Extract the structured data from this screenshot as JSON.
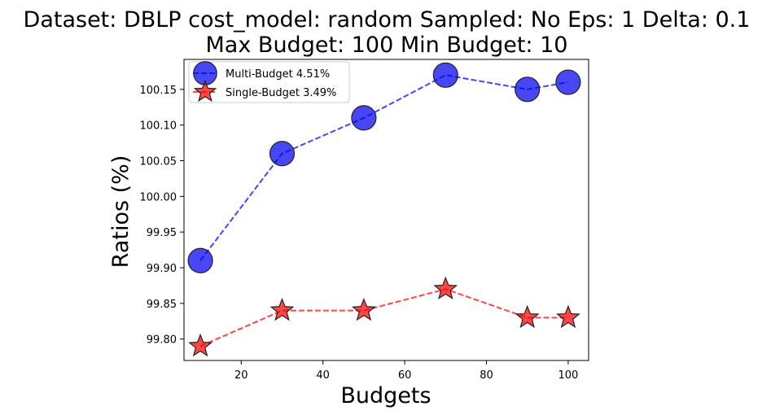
{
  "chart_data": {
    "type": "line",
    "title_line1": "Dataset: DBLP cost_model: random Sampled: No Eps: 1 Delta: 0.1",
    "title_line2": "Max Budget: 100 Min Budget: 10",
    "xlabel": "Budgets",
    "ylabel": "Ratios (%)",
    "x": [
      10,
      30,
      50,
      70,
      90,
      100
    ],
    "xlim": [
      6,
      105
    ],
    "ylim": [
      99.77,
      100.192
    ],
    "xticks": [
      20,
      40,
      60,
      80,
      100
    ],
    "yticks": [
      99.8,
      99.85,
      99.9,
      99.95,
      100.0,
      100.05,
      100.1,
      100.15
    ],
    "ytick_labels": [
      "99.80",
      "99.85",
      "99.90",
      "99.95",
      "100.00",
      "100.05",
      "100.10",
      "100.15"
    ],
    "grid": false,
    "legend_position": "top-left",
    "series": [
      {
        "name": "Multi-Budget 4.51%",
        "values": [
          99.91,
          100.06,
          100.11,
          100.17,
          100.15,
          100.16
        ],
        "color": "#0000ee",
        "marker": "circle",
        "linestyle": "dashed"
      },
      {
        "name": "Single-Budget 3.49%",
        "values": [
          99.79,
          99.84,
          99.84,
          99.87,
          99.83,
          99.83
        ],
        "color": "#ff0000",
        "marker": "star",
        "linestyle": "dashed"
      }
    ]
  }
}
